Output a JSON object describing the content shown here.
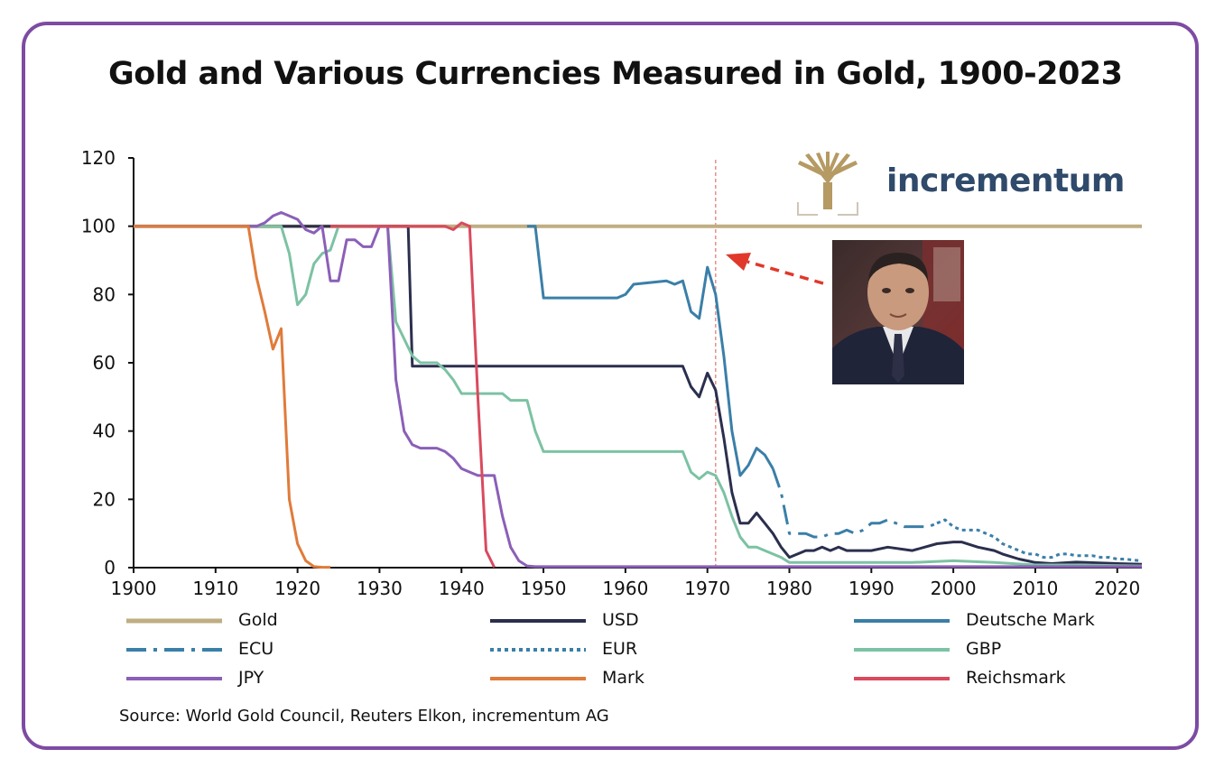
{
  "title": "Gold and Various Currencies Measured in Gold, 1900-2023",
  "source": "Source: World Gold Council, Reuters Elkon, incrementum AG",
  "logo": {
    "text": "incrementum",
    "icon": "tree-logo-icon",
    "color": "#b59a63"
  },
  "portrait": {
    "icon": "portrait-photo"
  },
  "annotation": {
    "marker_year": 1971,
    "arrow_color": "#e0392b"
  },
  "chart_data": {
    "type": "line",
    "title": "Gold and Various Currencies Measured in Gold, 1900-2023",
    "xlabel": "",
    "ylabel": "",
    "xlim": [
      1900,
      2023
    ],
    "ylim": [
      0,
      120
    ],
    "xticks": [
      1900,
      1910,
      1920,
      1930,
      1940,
      1950,
      1960,
      1970,
      1980,
      1990,
      2000,
      2010,
      2020
    ],
    "yticks": [
      0,
      20,
      40,
      60,
      80,
      100,
      120
    ],
    "grid": false,
    "legend_position": "bottom",
    "series": [
      {
        "name": "Gold",
        "color": "#bfae82",
        "dash": "solid",
        "points": [
          [
            1900,
            100
          ],
          [
            2023,
            100
          ]
        ]
      },
      {
        "name": "USD",
        "color": "#2b2f4e",
        "dash": "solid",
        "points": [
          [
            1900,
            100
          ],
          [
            1933,
            100
          ],
          [
            1933.5,
            100
          ],
          [
            1934,
            59
          ],
          [
            1950,
            59
          ],
          [
            1967,
            59
          ],
          [
            1968,
            53
          ],
          [
            1969,
            50
          ],
          [
            1970,
            57
          ],
          [
            1971,
            52
          ],
          [
            1972,
            38
          ],
          [
            1973,
            22
          ],
          [
            1974,
            13
          ],
          [
            1975,
            13
          ],
          [
            1976,
            16
          ],
          [
            1977,
            13
          ],
          [
            1978,
            10
          ],
          [
            1979,
            6
          ],
          [
            1980,
            3
          ],
          [
            1981,
            4
          ],
          [
            1982,
            5
          ],
          [
            1983,
            5
          ],
          [
            1984,
            6
          ],
          [
            1985,
            5
          ],
          [
            1986,
            6
          ],
          [
            1987,
            5
          ],
          [
            1988,
            5
          ],
          [
            1989,
            5
          ],
          [
            1990,
            5
          ],
          [
            1992,
            6
          ],
          [
            1995,
            5
          ],
          [
            1998,
            7
          ],
          [
            2000,
            7.5
          ],
          [
            2001,
            7.5
          ],
          [
            2003,
            6
          ],
          [
            2005,
            5
          ],
          [
            2006,
            4
          ],
          [
            2008,
            2.5
          ],
          [
            2010,
            1.5
          ],
          [
            2012,
            1.2
          ],
          [
            2015,
            1.6
          ],
          [
            2020,
            1.2
          ],
          [
            2023,
            1
          ]
        ]
      },
      {
        "name": "Deutsche Mark",
        "color": "#3a7fa8",
        "dash": "solid",
        "points": [
          [
            1948,
            100
          ],
          [
            1949,
            100
          ],
          [
            1950,
            79
          ],
          [
            1955,
            79
          ],
          [
            1959,
            79
          ],
          [
            1960,
            80
          ],
          [
            1961,
            83
          ],
          [
            1965,
            84
          ],
          [
            1966,
            83
          ],
          [
            1967,
            84
          ],
          [
            1968,
            75
          ],
          [
            1969,
            73
          ],
          [
            1970,
            88
          ],
          [
            1971,
            80
          ],
          [
            1972,
            62
          ],
          [
            1973,
            40
          ],
          [
            1974,
            27
          ],
          [
            1975,
            30
          ],
          [
            1976,
            35
          ],
          [
            1977,
            33
          ],
          [
            1978,
            29
          ]
        ]
      },
      {
        "name": "ECU",
        "color": "#3a7fa8",
        "dash": "dashdot",
        "points": [
          [
            1978,
            29
          ],
          [
            1979,
            22
          ],
          [
            1980,
            10
          ],
          [
            1981,
            10
          ],
          [
            1982,
            10
          ],
          [
            1983,
            9
          ],
          [
            1984,
            9
          ],
          [
            1985,
            10
          ],
          [
            1986,
            10
          ],
          [
            1987,
            11
          ],
          [
            1988,
            10
          ],
          [
            1989,
            11
          ],
          [
            1990,
            13
          ],
          [
            1991,
            13
          ],
          [
            1992,
            14
          ],
          [
            1993,
            13
          ],
          [
            1994,
            12
          ],
          [
            1995,
            12
          ],
          [
            1996,
            12
          ],
          [
            1997,
            12
          ],
          [
            1998,
            13
          ]
        ]
      },
      {
        "name": "EUR",
        "color": "#3a7fa8",
        "dash": "dotted",
        "points": [
          [
            1998,
            13
          ],
          [
            1999,
            14
          ],
          [
            2000,
            12
          ],
          [
            2001,
            11
          ],
          [
            2002,
            11
          ],
          [
            2003,
            11
          ],
          [
            2004,
            10
          ],
          [
            2005,
            9
          ],
          [
            2006,
            7
          ],
          [
            2007,
            6
          ],
          [
            2008,
            5
          ],
          [
            2009,
            4
          ],
          [
            2010,
            4
          ],
          [
            2011,
            3
          ],
          [
            2012,
            3
          ],
          [
            2013,
            4
          ],
          [
            2014,
            4
          ],
          [
            2015,
            3.5
          ],
          [
            2016,
            3.5
          ],
          [
            2017,
            3.5
          ],
          [
            2018,
            3
          ],
          [
            2019,
            3
          ],
          [
            2020,
            2.5
          ],
          [
            2021,
            2.5
          ],
          [
            2022,
            2.2
          ],
          [
            2023,
            2
          ]
        ]
      },
      {
        "name": "GBP",
        "color": "#7cc2a4",
        "dash": "solid",
        "points": [
          [
            1900,
            100
          ],
          [
            1914,
            100
          ],
          [
            1918,
            100
          ],
          [
            1919,
            92
          ],
          [
            1920,
            77
          ],
          [
            1921,
            80
          ],
          [
            1922,
            89
          ],
          [
            1923,
            92
          ],
          [
            1924,
            93
          ],
          [
            1925,
            100
          ],
          [
            1931,
            100
          ],
          [
            1932,
            72
          ],
          [
            1933,
            67
          ],
          [
            1934,
            62
          ],
          [
            1935,
            60
          ],
          [
            1936,
            60
          ],
          [
            1937,
            60
          ],
          [
            1938,
            58
          ],
          [
            1939,
            55
          ],
          [
            1940,
            51
          ],
          [
            1945,
            51
          ],
          [
            1946,
            49
          ],
          [
            1948,
            49
          ],
          [
            1949,
            40
          ],
          [
            1950,
            34
          ],
          [
            1960,
            34
          ],
          [
            1967,
            34
          ],
          [
            1968,
            28
          ],
          [
            1969,
            26
          ],
          [
            1970,
            28
          ],
          [
            1971,
            27
          ],
          [
            1972,
            22
          ],
          [
            1973,
            15
          ],
          [
            1974,
            9
          ],
          [
            1975,
            6
          ],
          [
            1976,
            6
          ],
          [
            1977,
            5
          ],
          [
            1978,
            4
          ],
          [
            1979,
            3
          ],
          [
            1980,
            1.5
          ],
          [
            1985,
            1.5
          ],
          [
            1990,
            1.5
          ],
          [
            1995,
            1.5
          ],
          [
            2000,
            2
          ],
          [
            2005,
            1.5
          ],
          [
            2010,
            0.8
          ],
          [
            2015,
            0.8
          ],
          [
            2020,
            0.6
          ],
          [
            2023,
            0.5
          ]
        ]
      },
      {
        "name": "JPY",
        "color": "#8b5fb8",
        "dash": "solid",
        "points": [
          [
            1900,
            100
          ],
          [
            1915,
            100
          ],
          [
            1916,
            101
          ],
          [
            1917,
            103
          ],
          [
            1918,
            104
          ],
          [
            1919,
            103
          ],
          [
            1920,
            102
          ],
          [
            1921,
            99
          ],
          [
            1922,
            98
          ],
          [
            1923,
            100
          ],
          [
            1924,
            84
          ],
          [
            1925,
            84
          ],
          [
            1926,
            96
          ],
          [
            1927,
            96
          ],
          [
            1928,
            94
          ],
          [
            1929,
            94
          ],
          [
            1930,
            100
          ],
          [
            1931,
            100
          ],
          [
            1932,
            55
          ],
          [
            1933,
            40
          ],
          [
            1934,
            36
          ],
          [
            1935,
            35
          ],
          [
            1936,
            35
          ],
          [
            1937,
            35
          ],
          [
            1938,
            34
          ],
          [
            1939,
            32
          ],
          [
            1940,
            29
          ],
          [
            1941,
            28
          ],
          [
            1942,
            27
          ],
          [
            1943,
            27
          ],
          [
            1944,
            27
          ],
          [
            1945,
            15
          ],
          [
            1946,
            6
          ],
          [
            1947,
            2
          ],
          [
            1948,
            0.5
          ],
          [
            1949,
            0.3
          ],
          [
            1960,
            0.3
          ],
          [
            1970,
            0.3
          ],
          [
            1980,
            0.3
          ],
          [
            1990,
            0.3
          ],
          [
            2000,
            0.3
          ],
          [
            2023,
            0.3
          ]
        ]
      },
      {
        "name": "Mark",
        "color": "#e07b3a",
        "dash": "solid",
        "points": [
          [
            1900,
            100
          ],
          [
            1914,
            100
          ],
          [
            1915,
            85
          ],
          [
            1916,
            75
          ],
          [
            1917,
            64
          ],
          [
            1918,
            70
          ],
          [
            1919,
            20
          ],
          [
            1920,
            7
          ],
          [
            1921,
            2
          ],
          [
            1922,
            0.3
          ],
          [
            1923,
            0.1
          ],
          [
            1924,
            0.1
          ]
        ]
      },
      {
        "name": "Reichsmark",
        "color": "#d94a5e",
        "dash": "solid",
        "points": [
          [
            1924,
            100
          ],
          [
            1938,
            100
          ],
          [
            1939,
            99
          ],
          [
            1940,
            101
          ],
          [
            1941,
            100
          ],
          [
            1942,
            50
          ],
          [
            1943,
            5
          ],
          [
            1944,
            0.1
          ]
        ]
      }
    ]
  }
}
